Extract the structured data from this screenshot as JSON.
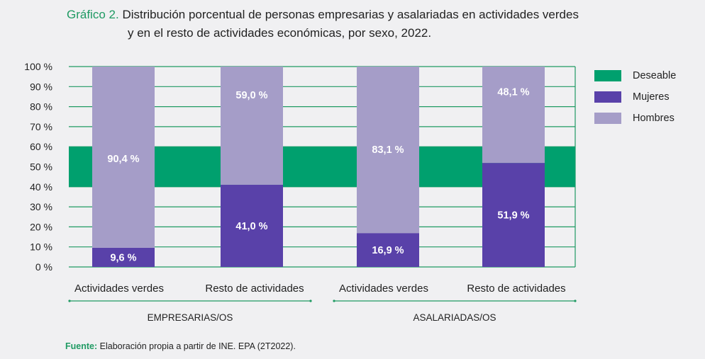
{
  "title": {
    "label": "Gráfico 2.",
    "line1": "Distribución porcentual de personas empresarias y asalariadas en actividades verdes",
    "line2": "y en el resto de actividades económicas, por sexo, 2022."
  },
  "source": {
    "label": "Fuente:",
    "text": "Elaboración propia a partir de INE. EPA (2T2022)."
  },
  "colors": {
    "deseable": "#00a06e",
    "mujeres": "#5941a9",
    "hombres": "#a59dc8",
    "grid": "#1f9a63",
    "label_text": "#ffffff"
  },
  "legend": [
    {
      "key": "deseable",
      "label": "Deseable"
    },
    {
      "key": "mujeres",
      "label": "Mujeres"
    },
    {
      "key": "hombres",
      "label": "Hombres"
    }
  ],
  "chart_data": {
    "type": "bar",
    "stacked": true,
    "percent": true,
    "title": "Distribución porcentual de personas empresarias y asalariadas en actividades verdes y en el resto de actividades económicas, por sexo, 2022.",
    "categories": [
      "Actividades verdes",
      "Resto de actividades",
      "Actividades verdes",
      "Resto de actividades"
    ],
    "groups": [
      {
        "label": "EMPRESARIAS/OS",
        "categories": [
          0,
          1
        ]
      },
      {
        "label": "ASALARIADAS/OS",
        "categories": [
          2,
          3
        ]
      }
    ],
    "series": [
      {
        "name": "Mujeres",
        "values": [
          9.6,
          41.0,
          16.9,
          51.9
        ],
        "labels": [
          "9,6 %",
          "41,0 %",
          "16,9 %",
          "51,9 %"
        ]
      },
      {
        "name": "Hombres",
        "values": [
          90.4,
          59.0,
          83.1,
          48.1
        ],
        "labels": [
          "90,4 %",
          "59,0 %",
          "83,1 %",
          "48,1 %"
        ]
      }
    ],
    "reference_band": {
      "name": "Deseable",
      "from": 40,
      "to": 60
    },
    "ylim": [
      0,
      100
    ],
    "yticks": [
      0,
      10,
      20,
      30,
      40,
      50,
      60,
      70,
      80,
      90,
      100
    ],
    "ytick_labels": [
      "0 %",
      "10 %",
      "20 %",
      "30 %",
      "40 %",
      "50 %",
      "60 %",
      "70 %",
      "80 %",
      "90 %",
      "100 %"
    ],
    "xlabel": "",
    "ylabel": "",
    "grid": true,
    "legend_position": "right"
  }
}
